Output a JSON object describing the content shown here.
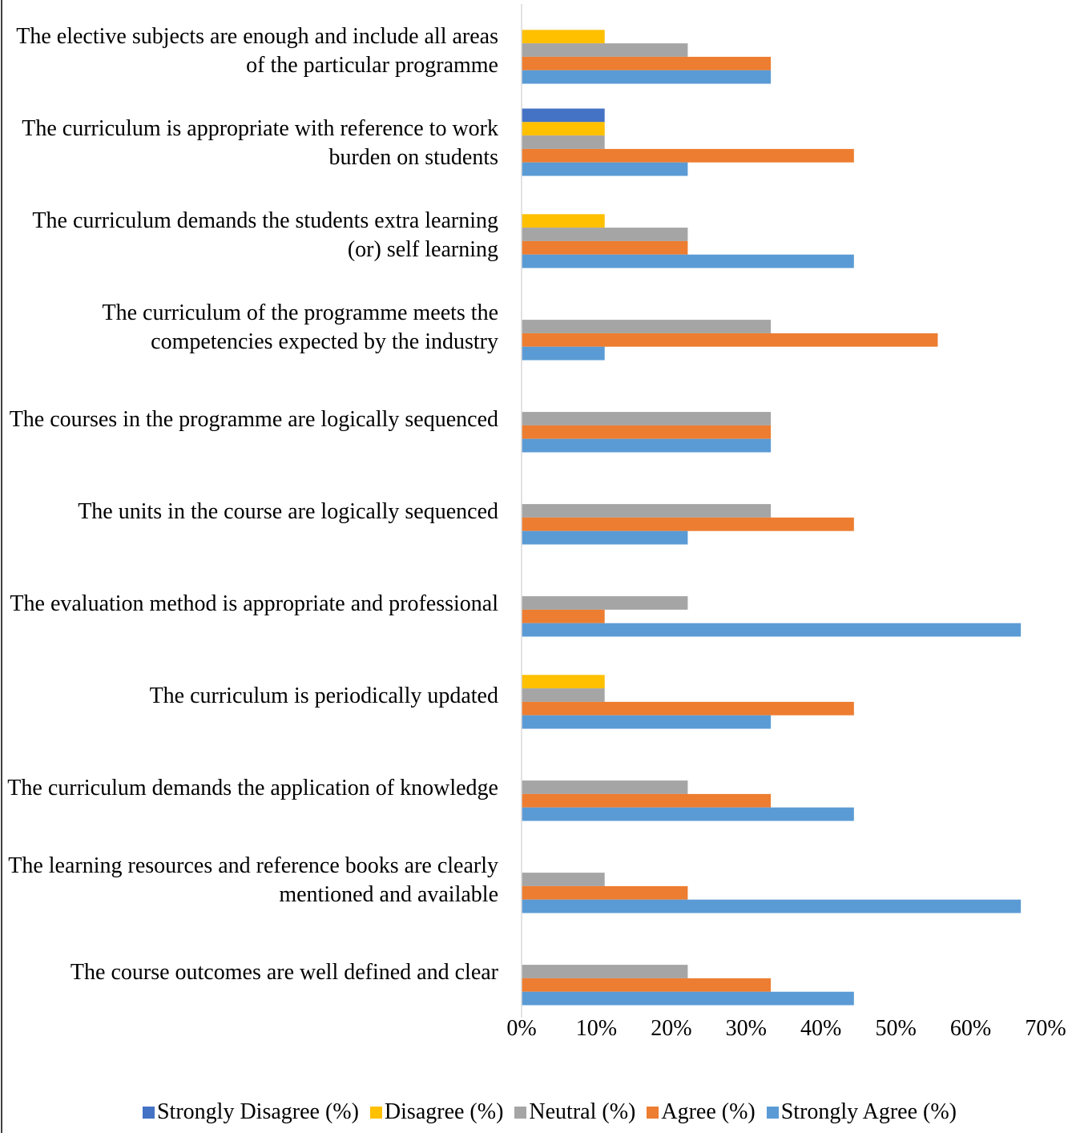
{
  "chart_data": {
    "type": "bar",
    "orientation": "horizontal",
    "categories": [
      "The elective subjects are enough and include all areas of the particular programme",
      "The curriculum is appropriate with reference to work burden on students",
      "The curriculum demands the students extra learning (or) self learning",
      "The curriculum of the programme meets the competencies expected by the industry",
      "The courses in the programme are logically sequenced",
      "The units in the course are logically sequenced",
      "The evaluation method is appropriate and professional",
      "The curriculum is periodically updated",
      "The curriculum demands the application of knowledge",
      "The learning resources and reference books are clearly mentioned and available",
      "The course outcomes are well defined and clear"
    ],
    "series": [
      {
        "name": "Strongly Disagree (%)",
        "color": "#4472c4",
        "values": [
          0,
          11.1,
          0,
          0,
          0,
          0,
          0,
          0,
          0,
          0,
          0
        ]
      },
      {
        "name": "Disagree (%)",
        "color": "#ffc000",
        "values": [
          11.1,
          11.1,
          11.1,
          0,
          0,
          0,
          0,
          11.1,
          0,
          0,
          0
        ]
      },
      {
        "name": "Neutral (%)",
        "color": "#a5a5a5",
        "values": [
          22.2,
          11.1,
          22.2,
          33.3,
          33.3,
          33.3,
          22.2,
          11.1,
          22.2,
          11.1,
          22.2
        ]
      },
      {
        "name": "Agree (%)",
        "color": "#ed7d31",
        "values": [
          33.3,
          44.4,
          22.2,
          55.6,
          33.3,
          44.4,
          11.1,
          44.4,
          33.3,
          22.2,
          33.3
        ]
      },
      {
        "name": "Strongly Agree (%)",
        "color": "#5b9bd5",
        "values": [
          33.3,
          22.2,
          44.4,
          11.1,
          33.3,
          22.2,
          66.7,
          33.3,
          44.4,
          66.7,
          44.4
        ]
      }
    ],
    "xlim": [
      0,
      70
    ],
    "xticks": [
      {
        "value": 0,
        "label": "0%"
      },
      {
        "value": 10,
        "label": "10%"
      },
      {
        "value": 20,
        "label": "20%"
      },
      {
        "value": 30,
        "label": "30%"
      },
      {
        "value": 40,
        "label": "40%"
      },
      {
        "value": 50,
        "label": "50%"
      },
      {
        "value": 60,
        "label": "60%"
      },
      {
        "value": 70,
        "label": "70%"
      }
    ],
    "grid": false,
    "legend": "bottom"
  }
}
